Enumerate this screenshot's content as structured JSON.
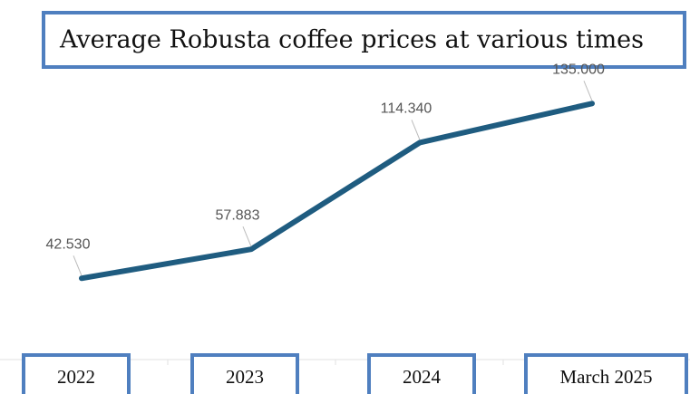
{
  "chart_data": {
    "type": "line",
    "title": "Average Robusta coffee prices at various times",
    "categories": [
      "2022",
      "2023",
      "2024",
      "March 2025"
    ],
    "series": [
      {
        "name": "Average Robusta coffee price",
        "color": "#1f5c80",
        "values": [
          42530,
          57883,
          114340,
          135000
        ],
        "value_labels": [
          "42.530",
          "57.883",
          "114.340",
          "135.000"
        ]
      }
    ],
    "ylim": [
      0,
      150000
    ]
  }
}
